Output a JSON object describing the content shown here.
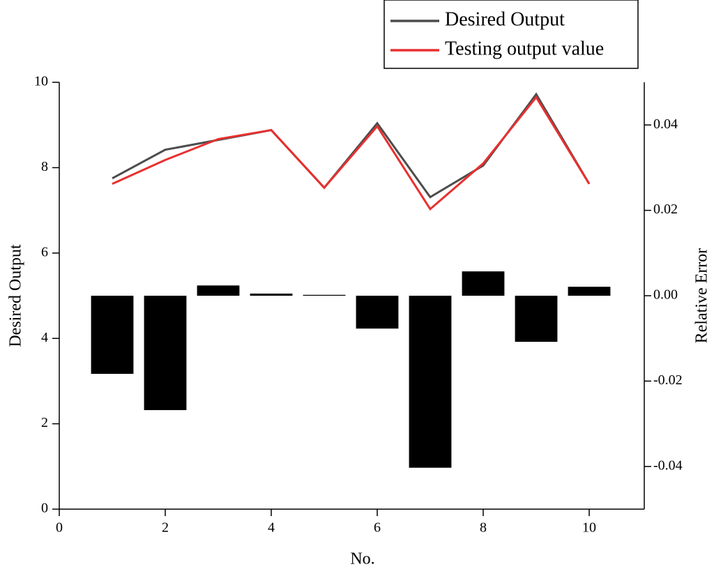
{
  "chart_data": {
    "type": "line",
    "x_label": "No.",
    "y_label": "Desired Output",
    "y2_label": "Relative Error",
    "x": [
      1,
      2,
      3,
      4,
      5,
      6,
      7,
      8,
      9,
      10
    ],
    "series": [
      {
        "name": "Desired Output",
        "color": "#4d4d4d",
        "values": [
          7.75,
          8.42,
          8.65,
          8.88,
          7.53,
          9.04,
          7.31,
          8.05,
          9.72,
          7.62
        ]
      },
      {
        "name": "Testing output value",
        "color": "#e8302f",
        "values": [
          7.62,
          8.18,
          8.67,
          8.88,
          7.53,
          8.97,
          7.03,
          8.1,
          9.65,
          7.62
        ]
      },
      {
        "type": "bar",
        "axis": "y2",
        "color": "#000000",
        "values": [
          -0.0183,
          -0.0268,
          0.0024,
          0.0005,
          0.0002,
          -0.0077,
          -0.0403,
          0.0057,
          -0.0108,
          0.0021
        ]
      }
    ],
    "xlim": [
      0,
      11
    ],
    "xticks": [
      0,
      2,
      4,
      6,
      8,
      10
    ],
    "ylim": [
      0,
      10
    ],
    "yticks": [
      0,
      2,
      4,
      6,
      8,
      10
    ],
    "y2lim": [
      -0.05,
      0.05
    ],
    "y2ticks": [
      -0.04,
      -0.02,
      {
        "value": 0,
        "label": "0.00"
      },
      0.02,
      0.04
    ],
    "legend": "top-right"
  }
}
